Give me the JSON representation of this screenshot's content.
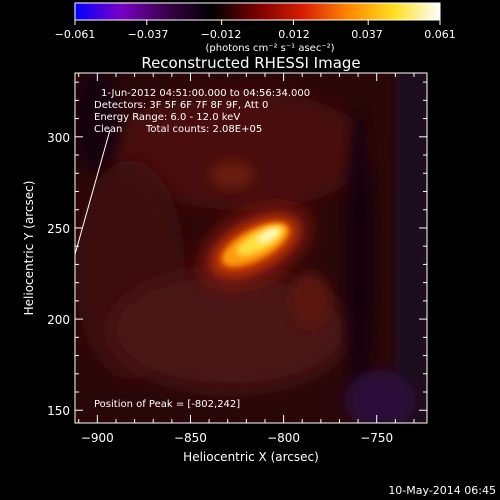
{
  "chart_data": {
    "type": "heatmap",
    "title": "Reconstructed RHESSI Image",
    "xlabel": "Heliocentric X (arcsec)",
    "ylabel": "Heliocentric Y (arcsec)",
    "xlim": [
      -912,
      -723
    ],
    "ylim": [
      143,
      335
    ],
    "x_ticks": [
      -900,
      -850,
      -800,
      -750
    ],
    "y_ticks": [
      150,
      200,
      250,
      300
    ],
    "x_tick_labels": [
      "−900",
      "−850",
      "−800",
      "−750"
    ],
    "y_tick_labels": [
      "150",
      "200",
      "250",
      "300"
    ],
    "colorbar": {
      "range": [
        -0.061,
        0.061
      ],
      "ticks": [
        -0.061,
        -0.037,
        -0.012,
        0.012,
        0.037,
        0.061
      ],
      "tick_labels": [
        "−0.061",
        "−0.037",
        "−0.012",
        "0.012",
        "0.037",
        "0.061"
      ],
      "label": "(photons cm⁻² s⁻¹ asec⁻²)",
      "colors": [
        "#0000ff",
        "#7a00c8",
        "#3a004a",
        "#000000",
        "#7a0000",
        "#d81e00",
        "#ff8800",
        "#ffe020",
        "#ffffff"
      ]
    },
    "annotations": {
      "time": "1-Jun-2012 04:51:00.000 to 04:56:34.000",
      "detectors": "Detectors: 3F 5F 6F 7F 8F 9F, Att 0",
      "energy": "Energy Range: 6.0 - 12.0 keV",
      "method": "Clean",
      "counts": "Total counts: 2.08E+05",
      "peak": "Position of Peak = [-802,242]"
    },
    "peak": {
      "x": -802,
      "y": 242
    },
    "grid": false
  },
  "footer_date": "10-May-2014 06:45"
}
